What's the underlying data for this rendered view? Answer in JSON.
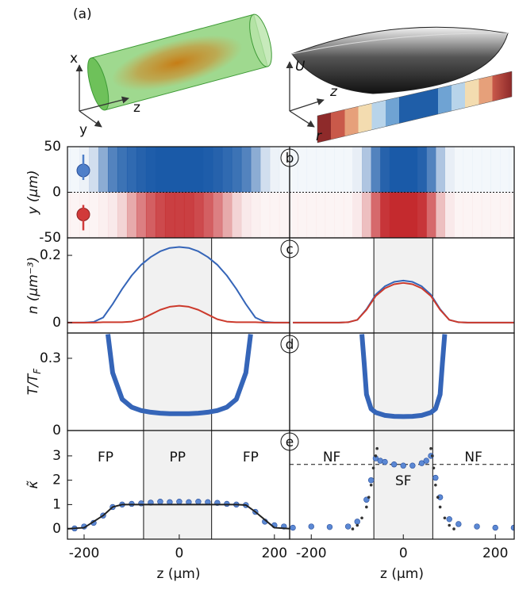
{
  "illustration": {
    "label": "(a)",
    "left_axes": [
      "x",
      "y",
      "z"
    ],
    "right_axes": [
      "U",
      "z",
      "r"
    ]
  },
  "chart_data": [
    {
      "type": "heatmap",
      "label": "b",
      "ylabel": "y (µm)",
      "ylim": [
        -50,
        50
      ],
      "yticks": [
        50,
        0,
        -50
      ],
      "xlim": [
        -235,
        232
      ],
      "x": [
        -240,
        -220,
        -200,
        -180,
        -160,
        -140,
        -120,
        -100,
        -80,
        -60,
        -40,
        -20,
        0,
        20,
        40,
        60,
        80,
        100,
        120,
        140,
        160,
        180,
        200,
        220,
        240
      ],
      "series": [
        {
          "color": "#1a5aa8",
          "values": [
            0.05,
            0.05,
            0.08,
            0.2,
            0.5,
            0.75,
            0.85,
            0.9,
            0.95,
            0.98,
            1,
            1,
            1,
            1,
            1,
            0.98,
            0.95,
            0.9,
            0.85,
            0.75,
            0.5,
            0.2,
            0.08,
            0.05,
            0.05
          ]
        },
        {
          "color": "#c42a2e",
          "values": [
            0.05,
            0.05,
            0.05,
            0.05,
            0.07,
            0.1,
            0.2,
            0.4,
            0.6,
            0.75,
            0.85,
            0.9,
            0.9,
            0.9,
            0.85,
            0.75,
            0.6,
            0.4,
            0.2,
            0.1,
            0.07,
            0.05,
            0.05,
            0.05,
            0.05
          ]
        }
      ]
    },
    {
      "type": "heatmap",
      "ylim": [
        -50,
        50
      ],
      "xlim": [
        -247,
        241
      ],
      "x": [
        -240,
        -220,
        -200,
        -180,
        -160,
        -140,
        -120,
        -100,
        -80,
        -60,
        -40,
        -20,
        0,
        20,
        40,
        60,
        80,
        100,
        120,
        140,
        160,
        180,
        200,
        220,
        240
      ],
      "series": [
        {
          "color": "#1a5aa8",
          "values": [
            0.05,
            0.05,
            0.05,
            0.05,
            0.05,
            0.05,
            0.05,
            0.1,
            0.35,
            0.75,
            0.95,
            1,
            1,
            1,
            0.95,
            0.75,
            0.35,
            0.1,
            0.05,
            0.05,
            0.05,
            0.05,
            0.05,
            0.05,
            0.05
          ]
        },
        {
          "color": "#c42a2e",
          "values": [
            0.05,
            0.05,
            0.05,
            0.05,
            0.05,
            0.05,
            0.05,
            0.1,
            0.3,
            0.7,
            0.95,
            1,
            1,
            1,
            0.95,
            0.7,
            0.3,
            0.1,
            0.05,
            0.05,
            0.05,
            0.05,
            0.05,
            0.05,
            0.05
          ]
        }
      ]
    },
    {
      "type": "line",
      "label": "c",
      "ylabel": "n (µm⁻³)",
      "ylim": [
        -0.031,
        0.252
      ],
      "yticks": [
        0,
        0.2
      ],
      "xlim": [
        -235,
        232
      ],
      "shade": [
        -75,
        68
      ],
      "x": [
        -240,
        -220,
        -200,
        -180,
        -160,
        -140,
        -120,
        -100,
        -80,
        -60,
        -40,
        -20,
        0,
        20,
        40,
        60,
        80,
        100,
        120,
        140,
        160,
        180,
        200,
        220,
        240
      ],
      "series": [
        {
          "color": "#3565b8",
          "mode": "line",
          "values": [
            0,
            0,
            0,
            0.002,
            0.015,
            0.055,
            0.1,
            0.14,
            0.172,
            0.195,
            0.212,
            0.222,
            0.225,
            0.222,
            0.212,
            0.195,
            0.172,
            0.14,
            0.1,
            0.055,
            0.015,
            0.002,
            0,
            0,
            0
          ]
        },
        {
          "color": "#cc3a2c",
          "mode": "line",
          "values": [
            0,
            0,
            0,
            0,
            0.001,
            0.001,
            0.001,
            0.003,
            0.01,
            0.024,
            0.038,
            0.047,
            0.05,
            0.047,
            0.038,
            0.024,
            0.01,
            0.003,
            0.001,
            0.001,
            0.001,
            0,
            0,
            0,
            0
          ]
        }
      ]
    },
    {
      "type": "line",
      "ylim": [
        -0.031,
        0.252
      ],
      "xlim": [
        -247,
        241
      ],
      "shade": [
        -64,
        64
      ],
      "x": [
        -240,
        -220,
        -200,
        -180,
        -160,
        -140,
        -120,
        -100,
        -80,
        -60,
        -40,
        -20,
        0,
        20,
        40,
        60,
        80,
        100,
        120,
        140,
        160,
        180,
        200,
        220,
        240
      ],
      "series": [
        {
          "color": "#3565b8",
          "mode": "line",
          "values": [
            0,
            0,
            0,
            0,
            0,
            0,
            0.001,
            0.008,
            0.04,
            0.083,
            0.108,
            0.121,
            0.125,
            0.121,
            0.108,
            0.083,
            0.04,
            0.008,
            0.001,
            0,
            0,
            0,
            0,
            0,
            0
          ]
        },
        {
          "color": "#cc3a2c",
          "mode": "line",
          "values": [
            0,
            0,
            0,
            0,
            0,
            0,
            0.001,
            0.008,
            0.038,
            0.079,
            0.102,
            0.114,
            0.118,
            0.114,
            0.102,
            0.079,
            0.038,
            0.008,
            0.001,
            0,
            0,
            0,
            0,
            0,
            0
          ]
        }
      ]
    },
    {
      "type": "line",
      "label": "d",
      "ylabel": [
        "T/T",
        "F"
      ],
      "ylim": [
        0,
        0.405
      ],
      "yticks": [
        0,
        0.3
      ],
      "xlim": [
        -235,
        232
      ],
      "shade": [
        -75,
        68
      ],
      "x": [
        -150,
        -140,
        -120,
        -100,
        -80,
        -60,
        -40,
        -20,
        0,
        20,
        40,
        60,
        80,
        100,
        120,
        140,
        150
      ],
      "series": [
        {
          "color": "#3565b8",
          "mode": "band",
          "values": [
            0.4,
            0.24,
            0.13,
            0.097,
            0.083,
            0.076,
            0.072,
            0.07,
            0.07,
            0.07,
            0.072,
            0.076,
            0.083,
            0.097,
            0.13,
            0.24,
            0.4
          ]
        }
      ]
    },
    {
      "type": "line",
      "ylim": [
        0,
        0.405
      ],
      "xlim": [
        -247,
        241
      ],
      "shade": [
        -64,
        64
      ],
      "x": [
        -90,
        -85,
        -80,
        -70,
        -60,
        -40,
        -20,
        0,
        20,
        40,
        60,
        70,
        80,
        85,
        90
      ],
      "series": [
        {
          "color": "#3565b8",
          "mode": "band",
          "values": [
            0.4,
            0.28,
            0.15,
            0.09,
            0.075,
            0.063,
            0.059,
            0.058,
            0.059,
            0.063,
            0.075,
            0.09,
            0.15,
            0.28,
            0.4
          ]
        }
      ]
    },
    {
      "type": "scatter",
      "label": "e",
      "ylabel": "κ̃",
      "xlabel": "z (µm)",
      "ylim": [
        -0.42,
        4.04
      ],
      "yticks": [
        0,
        1,
        2,
        3
      ],
      "xticks": [
        -200,
        0,
        200
      ],
      "xlim": [
        -235,
        232
      ],
      "shade": [
        -75,
        68
      ],
      "annotations": [
        "FP",
        "PP",
        "FP"
      ],
      "series": [
        {
          "color": "#5b88d4",
          "mode": "markers",
          "x": [
            -240,
            -220,
            -200,
            -180,
            -160,
            -140,
            -120,
            -100,
            -80,
            -60,
            -40,
            -20,
            0,
            20,
            40,
            60,
            80,
            100,
            120,
            140,
            160,
            180,
            200,
            220,
            240
          ],
          "values": [
            0.05,
            0.02,
            0.1,
            0.25,
            0.55,
            0.9,
            1.0,
            1.03,
            1.05,
            1.08,
            1.12,
            1.1,
            1.12,
            1.1,
            1.12,
            1.1,
            1.07,
            1.03,
            1.0,
            0.98,
            0.7,
            0.3,
            0.15,
            0.1,
            0.05
          ]
        },
        {
          "color": "#222222",
          "mode": "line",
          "x": [
            -240,
            -200,
            -160,
            -140,
            -120,
            120,
            140,
            160,
            200,
            240
          ],
          "values": [
            0,
            0.05,
            0.55,
            0.9,
            1.0,
            1.0,
            0.98,
            0.7,
            0.05,
            0
          ]
        }
      ]
    },
    {
      "type": "scatter",
      "xlabel": "z (µm)",
      "ylim": [
        -0.42,
        4.04
      ],
      "xticks": [
        -200,
        0,
        200
      ],
      "xlim": [
        -247,
        241
      ],
      "shade": [
        -64,
        64
      ],
      "hline": 2.65,
      "annotations": [
        "NF",
        "SF",
        "NF"
      ],
      "series": [
        {
          "color": "#5b88d4",
          "mode": "markers",
          "x": [
            -240,
            -200,
            -160,
            -120,
            -100,
            -80,
            -70,
            -60,
            -50,
            -40,
            -20,
            0,
            20,
            40,
            50,
            60,
            70,
            80,
            100,
            120,
            160,
            200,
            240
          ],
          "values": [
            0.05,
            0.1,
            0.08,
            0.1,
            0.3,
            1.2,
            2.0,
            2.9,
            2.8,
            2.75,
            2.65,
            2.6,
            2.6,
            2.7,
            2.8,
            3.0,
            2.1,
            1.3,
            0.4,
            0.2,
            0.1,
            0.05,
            0.05
          ]
        },
        {
          "color": "#333333",
          "mode": "dots",
          "x": [
            -110,
            -100,
            -90,
            -80,
            -75,
            -70,
            -65,
            -60,
            -57,
            60,
            63,
            66,
            70,
            75,
            80,
            90,
            100,
            110
          ],
          "values": [
            0,
            0.15,
            0.45,
            0.9,
            1.3,
            1.8,
            2.5,
            3.0,
            3.3,
            3.3,
            3.0,
            2.5,
            1.8,
            1.3,
            0.9,
            0.45,
            0.15,
            0
          ]
        }
      ]
    }
  ]
}
